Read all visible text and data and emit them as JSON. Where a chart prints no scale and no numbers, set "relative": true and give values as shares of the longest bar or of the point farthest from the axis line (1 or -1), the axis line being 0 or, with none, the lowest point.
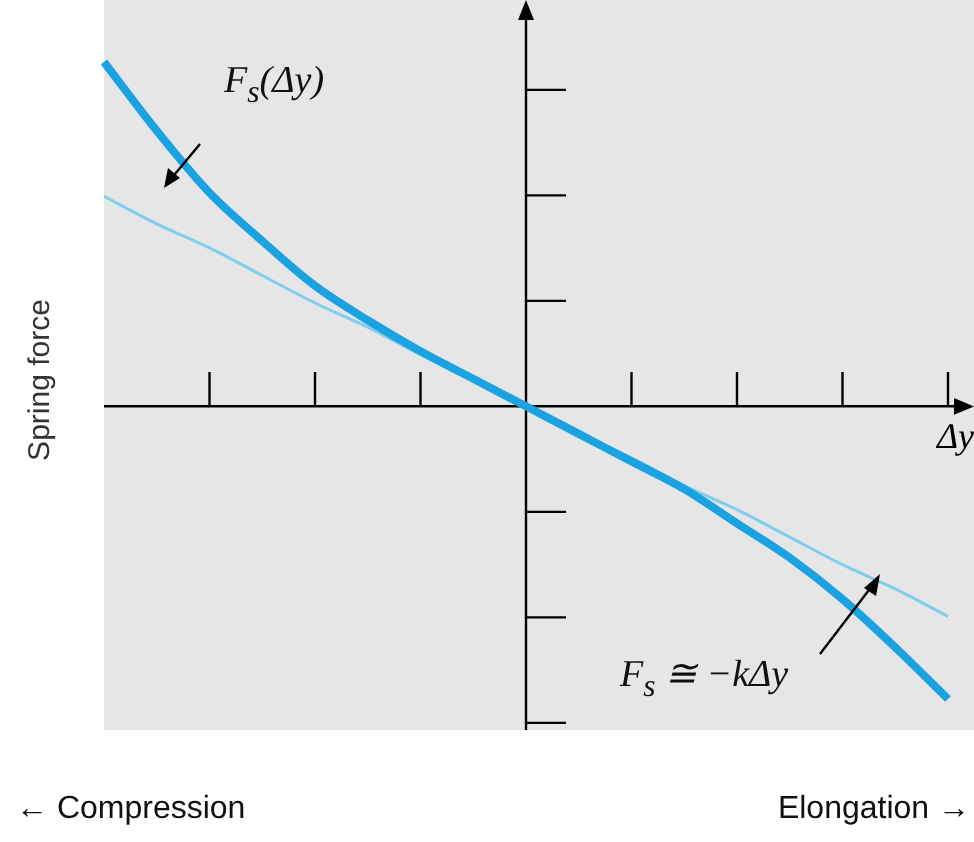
{
  "chart_data": {
    "type": "line",
    "relative": true,
    "ylabel": "Spring force",
    "xlabel": "Δy",
    "legend": false,
    "marker": "none",
    "line_style": "solid",
    "categories": [
      null,
      null,
      null,
      null,
      null,
      null,
      null,
      null,
      null,
      null,
      null,
      null,
      null,
      null,
      null,
      null,
      null
    ],
    "series": [
      {
        "color": "#1aa3e0",
        "values": [
          1,
          0.8,
          0.62,
          0.48,
          0.35,
          0.25,
          0.16,
          0.08,
          0,
          -0.08,
          -0.16,
          -0.24,
          -0.34,
          -0.44,
          -0.56,
          -0.7,
          -0.85
        ]
      },
      {
        "color": "#80cdef",
        "values": [
          0.61,
          0.53,
          0.46,
          0.38,
          0.3,
          0.23,
          0.15,
          0.08,
          0,
          -0.08,
          -0.15,
          -0.23,
          -0.3,
          -0.38,
          -0.46,
          -0.53,
          -0.61
        ]
      }
    ],
    "annotations": [
      "F$_{s}$(Δy)",
      "F$_{s}$ ≅ −kΔy",
      "← Compression",
      "Elongation →"
    ]
  }
}
